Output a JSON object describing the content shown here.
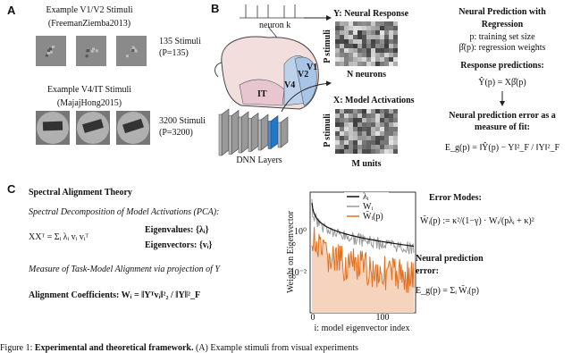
{
  "panels": {
    "A": {
      "label": "A",
      "v1": {
        "title": "Example V1/V2 Stimuli",
        "source": "(FreemanZiemba2013)",
        "count": "135 Stimuli",
        "p": "(P=135)"
      },
      "v4": {
        "title": "Example V4/IT Stimuli",
        "source": "(MajajHong2015)",
        "count": "3200 Stimuli",
        "p": "(P=3200)"
      }
    },
    "B": {
      "label": "B",
      "neuron": "neuron k",
      "areas": [
        "V1",
        "V2",
        "V4",
        "IT"
      ],
      "y_matrix": {
        "title": "Y: Neural Response",
        "rows": "P stimuli",
        "cols": "N neurons"
      },
      "x_matrix": {
        "title": "X: Model Activations",
        "rows": "P stimuli",
        "cols": "M units"
      },
      "dnn": "DNN Layers",
      "regression": {
        "title": [
          "Neural Prediction with",
          "Regression"
        ],
        "defs": [
          "p: training set size",
          "β̂(p): regression weights"
        ],
        "predictions_title": "Response predictions:",
        "predictions_eq": "Ŷ(p) = Xβ̂(p)",
        "error_title": [
          "Neural prediction error as a",
          "measure of fit:"
        ],
        "error_eq": "E_g(p) = ‖Ŷ(p) − Y‖²_F / ‖Y‖²_F"
      }
    },
    "C": {
      "label": "C",
      "title": "Spectral Alignment Theory",
      "pca_title": "Spectral Decomposition of Model Activations (PCA):",
      "pca_eq": "XXᵀ = Σᵢ λᵢ vᵢ vᵢᵀ",
      "eigenvalues": "Eigenvalues: {λᵢ}",
      "eigenvectors": "Eigenvectors: {vᵢ}",
      "alignment_title": "Measure of Task-Model Alignment via projection of Y",
      "alignment_eq": "Alignment Coefficients:  Wᵢ = ‖Yᵀvᵢ‖²₂ / ‖Y‖²_F",
      "plot": {
        "ylabel": "Weight on Eigenvector",
        "xlabel": "i: model eigenvector index",
        "xticks": [
          "0",
          "100"
        ],
        "yticks": [
          "10⁰",
          "10⁻²"
        ],
        "legend": [
          "λᵢ",
          "Wᵢ",
          "W̃ᵢ(p)"
        ]
      },
      "error_modes_title": "Error Modes:",
      "error_modes_eq": "W̃ᵢ(p) := κ²/(1−γ) · Wᵢ/(pλᵢ + κ)²",
      "npe_title": [
        "Neural prediction",
        "error:"
      ],
      "npe_eq": "E_g(p) = Σᵢ W̃ᵢ(p)"
    }
  },
  "caption": {
    "lead": "Figure 1: ",
    "bold": "Experimental and theoretical framework.",
    "rest": " (A) Example stimuli from visual experiments"
  }
}
